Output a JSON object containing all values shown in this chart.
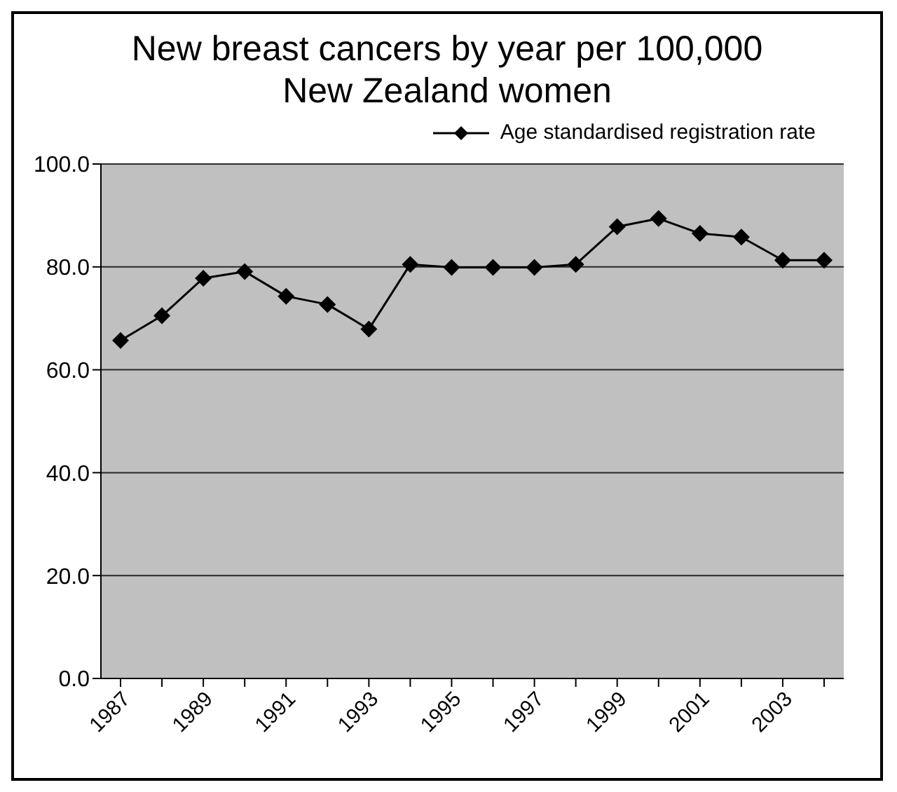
{
  "chart_data": {
    "type": "line",
    "title": "New breast cancers by year per 100,000 New Zealand women",
    "categories": [
      "1987",
      null,
      "1989",
      null,
      "1991",
      null,
      "1993",
      null,
      "1995",
      null,
      "1997",
      null,
      "1999",
      null,
      "2001",
      null,
      "2003",
      null
    ],
    "series": [
      {
        "name": "Age standardised registration rate",
        "color": "#000000",
        "values": [
          65.7,
          70.5,
          77.8,
          79.1,
          74.3,
          72.7,
          67.9,
          80.5,
          79.9,
          79.9,
          79.9,
          80.5,
          87.8,
          89.4,
          86.5,
          85.8,
          81.3,
          81.3
        ]
      }
    ],
    "ylim": [
      0,
      100
    ],
    "yticks": [
      {
        "value": 0,
        "label": "0.0"
      },
      {
        "value": 20,
        "label": "20.0"
      },
      {
        "value": 40,
        "label": "40.0"
      },
      {
        "value": 60,
        "label": "60.0"
      },
      {
        "value": 80,
        "label": "80.0"
      },
      {
        "value": 100,
        "label": "100.0"
      }
    ],
    "grid": "y",
    "legend": "top right",
    "marker": "diamond",
    "line_style": "solid"
  }
}
